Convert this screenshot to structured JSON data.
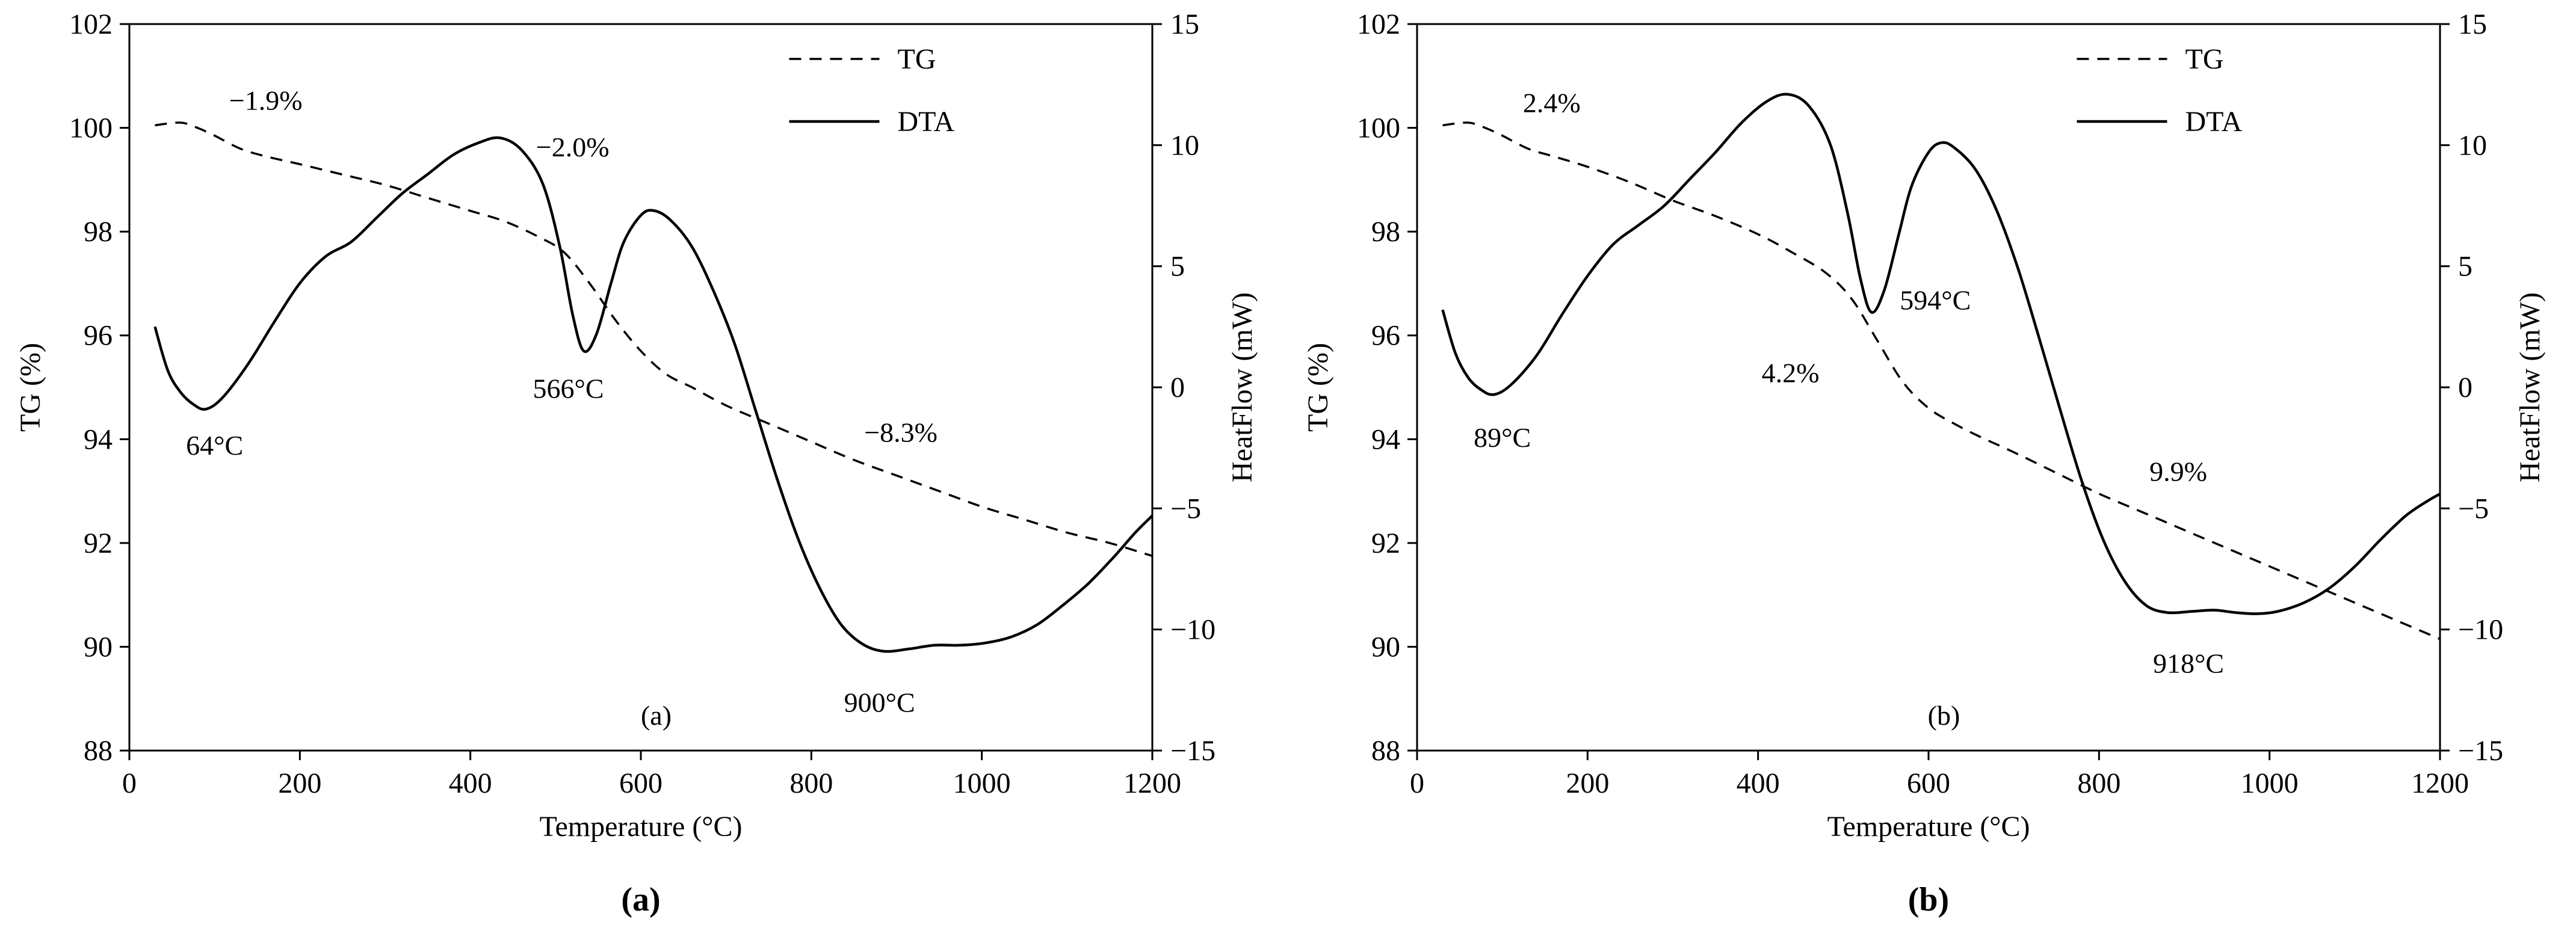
{
  "figure": {
    "background": "#ffffff",
    "line_color": "#000000"
  },
  "chart_data": [
    {
      "type": "line",
      "panel_caption": "(a)",
      "xlabel": "Temperature (°C)",
      "ylabel_left": "TG (%)",
      "ylabel_right": "HeatFlow (mW)",
      "xlim": [
        0,
        1200
      ],
      "ylim_left": [
        88,
        102
      ],
      "ylim_right": [
        -15,
        15
      ],
      "x_ticks": [
        0,
        200,
        400,
        600,
        800,
        1000,
        1200
      ],
      "y_ticks_left": [
        88,
        90,
        92,
        94,
        96,
        98,
        100,
        102
      ],
      "y_ticks_right": [
        -15,
        -10,
        -5,
        0,
        5,
        10,
        15
      ],
      "legend": {
        "position": "top-right",
        "items": [
          {
            "label": "TG",
            "style": "dashed"
          },
          {
            "label": "DTA",
            "style": "solid"
          }
        ]
      },
      "annotations": [
        {
          "text": "−1.9%",
          "x": 160,
          "y": 100.35
        },
        {
          "text": "−2.0%",
          "x": 520,
          "y": 99.45
        },
        {
          "text": "566°C",
          "x": 515,
          "y": 94.8
        },
        {
          "text": "64°C",
          "x": 100,
          "y": 93.7
        },
        {
          "text": "−8.3%",
          "x": 905,
          "y": 93.95
        },
        {
          "text": "900°C",
          "x": 880,
          "y": 88.75
        },
        {
          "text": "(a)",
          "x": 618,
          "y": 88.5
        }
      ],
      "series": [
        {
          "name": "TG",
          "axis": "left",
          "style": "dashed",
          "points": [
            [
              30,
              100.05
            ],
            [
              60,
              100.1
            ],
            [
              80,
              100.0
            ],
            [
              100,
              99.85
            ],
            [
              130,
              99.6
            ],
            [
              160,
              99.45
            ],
            [
              200,
              99.3
            ],
            [
              250,
              99.1
            ],
            [
              300,
              98.9
            ],
            [
              350,
              98.65
            ],
            [
              400,
              98.4
            ],
            [
              440,
              98.2
            ],
            [
              480,
              97.9
            ],
            [
              510,
              97.6
            ],
            [
              540,
              97.0
            ],
            [
              570,
              96.3
            ],
            [
              600,
              95.7
            ],
            [
              630,
              95.25
            ],
            [
              660,
              95.0
            ],
            [
              700,
              94.65
            ],
            [
              750,
              94.3
            ],
            [
              800,
              93.95
            ],
            [
              850,
              93.6
            ],
            [
              900,
              93.3
            ],
            [
              950,
              93.0
            ],
            [
              1000,
              92.7
            ],
            [
              1050,
              92.45
            ],
            [
              1100,
              92.2
            ],
            [
              1150,
              92.0
            ],
            [
              1200,
              91.75
            ]
          ]
        },
        {
          "name": "DTA",
          "axis": "right",
          "style": "solid",
          "points": [
            [
              30,
              2.5
            ],
            [
              45,
              0.7
            ],
            [
              60,
              -0.2
            ],
            [
              75,
              -0.7
            ],
            [
              90,
              -0.9
            ],
            [
              110,
              -0.4
            ],
            [
              140,
              1.0
            ],
            [
              170,
              2.7
            ],
            [
              200,
              4.3
            ],
            [
              230,
              5.4
            ],
            [
              260,
              6.0
            ],
            [
              290,
              7.0
            ],
            [
              320,
              8.0
            ],
            [
              350,
              8.8
            ],
            [
              380,
              9.6
            ],
            [
              410,
              10.1
            ],
            [
              435,
              10.3
            ],
            [
              460,
              9.8
            ],
            [
              485,
              8.4
            ],
            [
              505,
              5.8
            ],
            [
              520,
              3.0
            ],
            [
              533,
              1.5
            ],
            [
              548,
              2.2
            ],
            [
              565,
              4.3
            ],
            [
              580,
              6.0
            ],
            [
              600,
              7.1
            ],
            [
              615,
              7.3
            ],
            [
              635,
              6.9
            ],
            [
              660,
              5.8
            ],
            [
              685,
              4.0
            ],
            [
              710,
              1.8
            ],
            [
              735,
              -1.0
            ],
            [
              760,
              -3.8
            ],
            [
              785,
              -6.3
            ],
            [
              810,
              -8.3
            ],
            [
              835,
              -9.8
            ],
            [
              860,
              -10.6
            ],
            [
              885,
              -10.9
            ],
            [
              915,
              -10.8
            ],
            [
              945,
              -10.65
            ],
            [
              975,
              -10.65
            ],
            [
              1005,
              -10.55
            ],
            [
              1035,
              -10.3
            ],
            [
              1065,
              -9.8
            ],
            [
              1095,
              -9.0
            ],
            [
              1125,
              -8.1
            ],
            [
              1155,
              -7.0
            ],
            [
              1180,
              -6.0
            ],
            [
              1200,
              -5.3
            ]
          ]
        }
      ]
    },
    {
      "type": "line",
      "panel_caption": "(b)",
      "xlabel": "Temperature (°C)",
      "ylabel_left": "TG (%)",
      "ylabel_right": "HeatFlow (mW)",
      "xlim": [
        0,
        1200
      ],
      "ylim_left": [
        88,
        102
      ],
      "ylim_right": [
        -15,
        15
      ],
      "x_ticks": [
        0,
        200,
        400,
        600,
        800,
        1000,
        1200
      ],
      "y_ticks_left": [
        88,
        90,
        92,
        94,
        96,
        98,
        100,
        102
      ],
      "y_ticks_right": [
        -15,
        -10,
        -5,
        0,
        5,
        10,
        15
      ],
      "legend": {
        "position": "top-right",
        "items": [
          {
            "label": "TG",
            "style": "dashed"
          },
          {
            "label": "DTA",
            "style": "solid"
          }
        ]
      },
      "annotations": [
        {
          "text": "2.4%",
          "x": 158,
          "y": 100.3
        },
        {
          "text": "4.2%",
          "x": 438,
          "y": 95.1
        },
        {
          "text": "594°C",
          "x": 608,
          "y": 96.5
        },
        {
          "text": "89°C",
          "x": 100,
          "y": 93.85
        },
        {
          "text": "9.9%",
          "x": 893,
          "y": 93.2
        },
        {
          "text": "918°C",
          "x": 905,
          "y": 89.5
        },
        {
          "text": "(b)",
          "x": 618,
          "y": 88.5
        }
      ],
      "series": [
        {
          "name": "TG",
          "axis": "left",
          "style": "dashed",
          "points": [
            [
              30,
              100.05
            ],
            [
              60,
              100.1
            ],
            [
              80,
              100.0
            ],
            [
              100,
              99.85
            ],
            [
              130,
              99.6
            ],
            [
              160,
              99.45
            ],
            [
              200,
              99.25
            ],
            [
              250,
              98.95
            ],
            [
              300,
              98.6
            ],
            [
              350,
              98.3
            ],
            [
              400,
              97.95
            ],
            [
              440,
              97.6
            ],
            [
              480,
              97.2
            ],
            [
              510,
              96.7
            ],
            [
              540,
              95.9
            ],
            [
              570,
              95.1
            ],
            [
              600,
              94.6
            ],
            [
              630,
              94.3
            ],
            [
              660,
              94.05
            ],
            [
              700,
              93.75
            ],
            [
              750,
              93.35
            ],
            [
              800,
              92.95
            ],
            [
              850,
              92.6
            ],
            [
              900,
              92.25
            ],
            [
              950,
              91.9
            ],
            [
              1000,
              91.55
            ],
            [
              1050,
              91.2
            ],
            [
              1100,
              90.85
            ],
            [
              1150,
              90.5
            ],
            [
              1200,
              90.15
            ]
          ]
        },
        {
          "name": "DTA",
          "axis": "right",
          "style": "solid",
          "points": [
            [
              30,
              3.2
            ],
            [
              45,
              1.4
            ],
            [
              60,
              0.4
            ],
            [
              75,
              -0.1
            ],
            [
              90,
              -0.3
            ],
            [
              110,
              0.1
            ],
            [
              140,
              1.3
            ],
            [
              170,
              3.0
            ],
            [
              200,
              4.6
            ],
            [
              230,
              5.9
            ],
            [
              260,
              6.7
            ],
            [
              290,
              7.5
            ],
            [
              320,
              8.6
            ],
            [
              350,
              9.7
            ],
            [
              380,
              10.9
            ],
            [
              410,
              11.8
            ],
            [
              435,
              12.1
            ],
            [
              460,
              11.6
            ],
            [
              485,
              10.0
            ],
            [
              505,
              7.2
            ],
            [
              520,
              4.5
            ],
            [
              533,
              3.1
            ],
            [
              548,
              4.0
            ],
            [
              565,
              6.3
            ],
            [
              580,
              8.3
            ],
            [
              600,
              9.7
            ],
            [
              615,
              10.1
            ],
            [
              630,
              9.9
            ],
            [
              655,
              9.0
            ],
            [
              680,
              7.3
            ],
            [
              705,
              4.9
            ],
            [
              730,
              2.0
            ],
            [
              755,
              -1.0
            ],
            [
              780,
              -3.9
            ],
            [
              805,
              -6.3
            ],
            [
              830,
              -8.0
            ],
            [
              855,
              -9.0
            ],
            [
              880,
              -9.3
            ],
            [
              910,
              -9.25
            ],
            [
              935,
              -9.2
            ],
            [
              960,
              -9.3
            ],
            [
              985,
              -9.35
            ],
            [
              1010,
              -9.25
            ],
            [
              1040,
              -8.9
            ],
            [
              1070,
              -8.3
            ],
            [
              1100,
              -7.4
            ],
            [
              1130,
              -6.3
            ],
            [
              1160,
              -5.3
            ],
            [
              1185,
              -4.7
            ],
            [
              1200,
              -4.4
            ]
          ]
        }
      ]
    }
  ]
}
